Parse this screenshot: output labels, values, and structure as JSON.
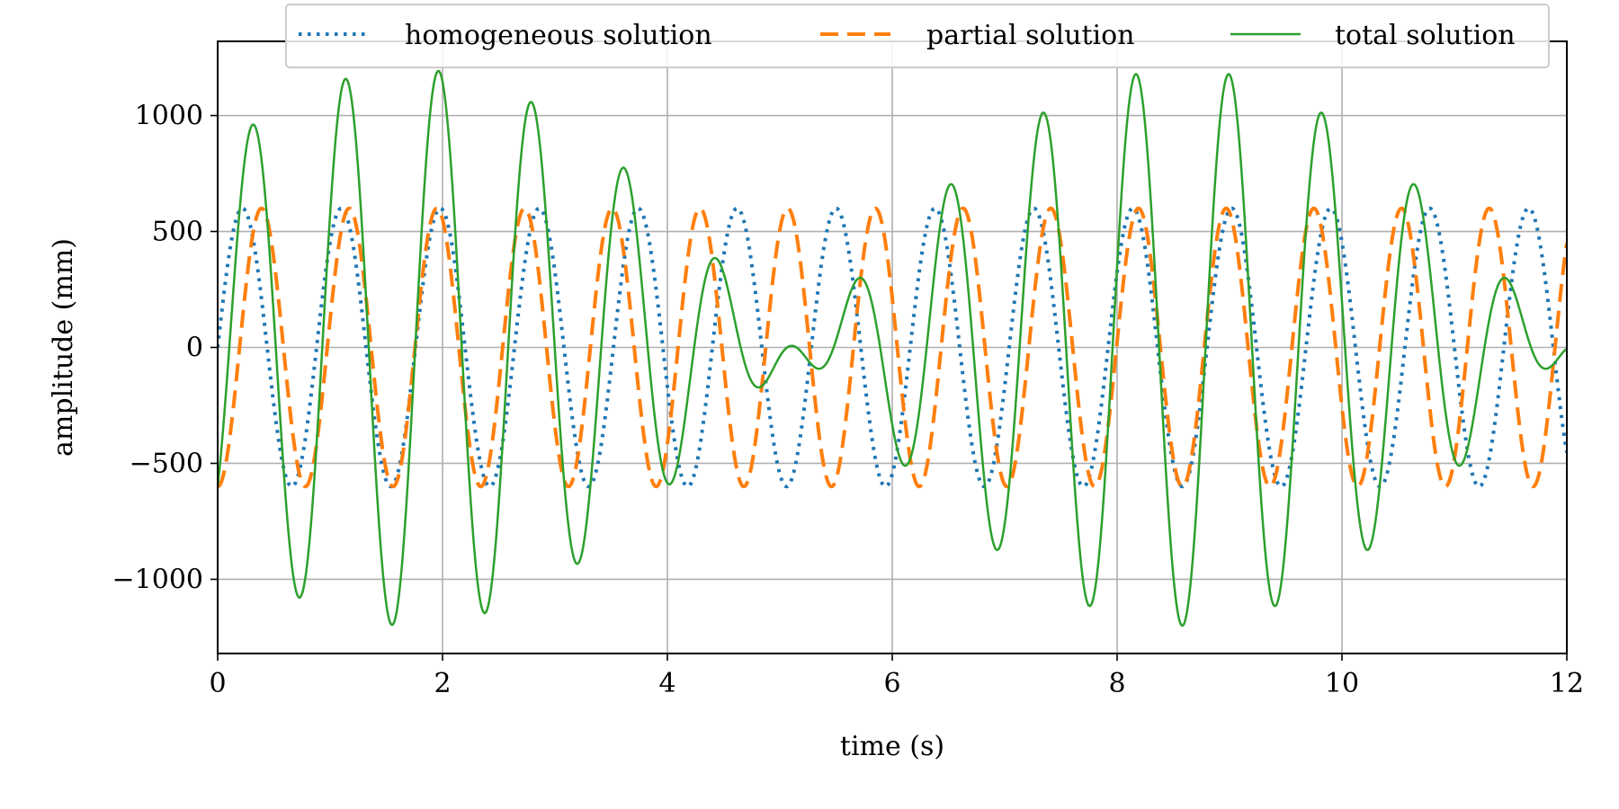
{
  "chart_data": {
    "type": "line",
    "title": "",
    "xlabel": "time (s)",
    "ylabel": "amplitude (mm)",
    "xlim": [
      0,
      12
    ],
    "ylim": [
      -1320,
      1320
    ],
    "xticks": [
      0,
      2,
      4,
      6,
      8,
      10,
      12
    ],
    "xtick_labels": [
      "0",
      "2",
      "4",
      "6",
      "8",
      "10",
      "12"
    ],
    "yticks": [
      -1000,
      -500,
      0,
      500,
      1000
    ],
    "ytick_labels": [
      "−1000",
      "−500",
      "0",
      "500",
      "1000"
    ],
    "grid": true,
    "legend_position": "top-center",
    "series": [
      {
        "name": "homogeneous solution",
        "style": "dotted",
        "color": "#1f77b4",
        "model": "600*sin(2*pi*t/0.88)",
        "amplitude": 600,
        "period": 0.88
      },
      {
        "name": "partial solution",
        "style": "dashed",
        "color": "#ff7f0e",
        "model": "-600*cos(2*pi*t/0.78)",
        "amplitude": 600,
        "period": 0.78
      },
      {
        "name": "total solution",
        "style": "solid",
        "color": "#2ca02c",
        "model": "homogeneous + partial"
      }
    ]
  }
}
